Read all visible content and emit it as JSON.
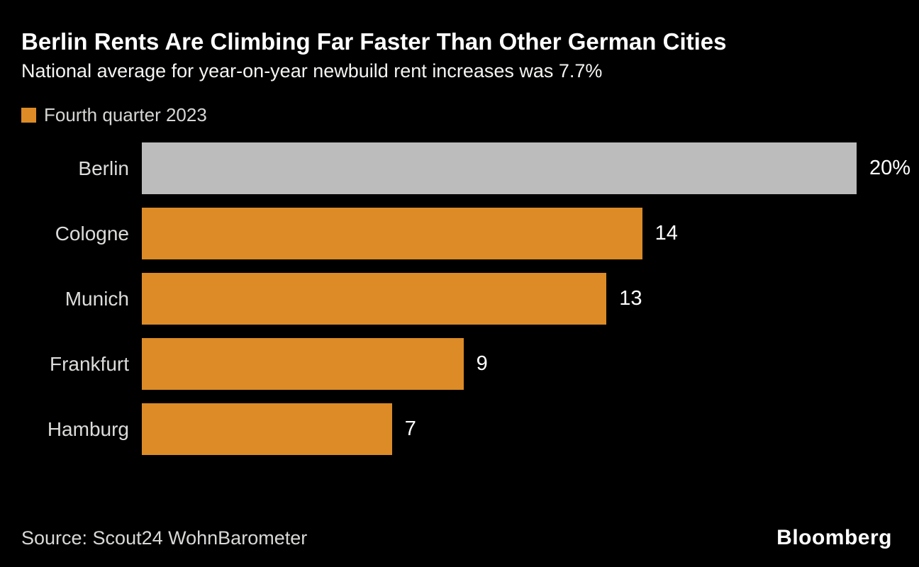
{
  "header": {
    "title": "Berlin Rents Are Climbing Far Faster Than Other German Cities",
    "subtitle": "National average for year-on-year newbuild rent increases was 7.7%"
  },
  "legend": {
    "label": "Fourth quarter 2023",
    "swatch_color": "#dc8b26"
  },
  "chart_data": {
    "type": "bar",
    "orientation": "horizontal",
    "title": "Berlin Rents Are Climbing Far Faster Than Other German Cities",
    "subtitle": "National average for year-on-year newbuild rent increases was 7.7%",
    "series_name": "Fourth quarter 2023",
    "categories": [
      "Berlin",
      "Cologne",
      "Munich",
      "Frankfurt",
      "Hamburg"
    ],
    "values": [
      20,
      14,
      13,
      9,
      7
    ],
    "value_labels": [
      "20%",
      "14",
      "13",
      "9",
      "7"
    ],
    "unit": "percent",
    "xlim": [
      0,
      20
    ],
    "grid": false,
    "legend_position": "top-left",
    "bar_colors": [
      "#bcbcbc",
      "#dc8b26",
      "#dc8b26",
      "#dc8b26",
      "#dc8b26"
    ],
    "highlight_category": "Berlin",
    "highlight_color": "#bcbcbc",
    "default_color": "#dc8b26"
  },
  "footer": {
    "source": "Source: Scout24 WohnBarometer",
    "brand": "Bloomberg"
  },
  "colors": {
    "background": "#000000",
    "bar_orange": "#dc8b26",
    "bar_gray": "#bcbcbc",
    "text_primary": "#ffffff",
    "text_secondary": "#d6d6d4"
  }
}
